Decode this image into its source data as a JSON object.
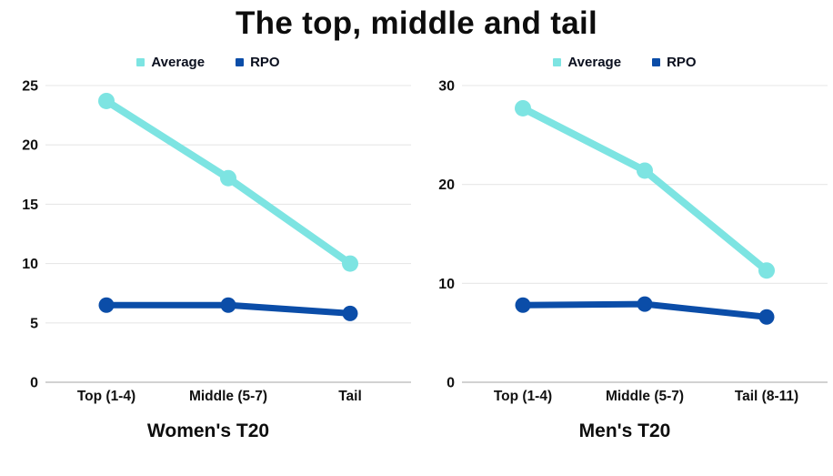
{
  "page_title": "The top, middle and tail",
  "legend": {
    "items": [
      {
        "label": "Average",
        "color": "#7DE4E2"
      },
      {
        "label": "RPO",
        "color": "#0B4DA8"
      }
    ]
  },
  "colors": {
    "average_series": "#7DE4E2",
    "rpo_series": "#0B4DA8",
    "gridline": "#E7E7E7",
    "axis_line": "#C4C4C4",
    "text": "#111111"
  },
  "chart_data": [
    {
      "type": "line",
      "title": "Women's T20",
      "categories": [
        "Top (1-4)",
        "Middle (5-7)",
        "Tail"
      ],
      "xlabel": "",
      "ylabel": "",
      "ylim": [
        0,
        25
      ],
      "yticks": [
        0,
        5,
        10,
        15,
        20,
        25
      ],
      "grid": true,
      "legend_position": "top-center",
      "series": [
        {
          "name": "Average",
          "color": "#7DE4E2",
          "values": [
            23.7,
            17.2,
            10.0
          ]
        },
        {
          "name": "RPO",
          "color": "#0B4DA8",
          "values": [
            6.5,
            6.5,
            5.8
          ]
        }
      ]
    },
    {
      "type": "line",
      "title": "Men's T20",
      "categories": [
        "Top (1-4)",
        "Middle (5-7)",
        "Tail (8-11)"
      ],
      "xlabel": "",
      "ylabel": "",
      "ylim": [
        0,
        30
      ],
      "yticks": [
        0,
        10,
        20,
        30
      ],
      "grid": true,
      "legend_position": "top-center",
      "series": [
        {
          "name": "Average",
          "color": "#7DE4E2",
          "values": [
            27.7,
            21.4,
            11.3
          ]
        },
        {
          "name": "RPO",
          "color": "#0B4DA8",
          "values": [
            7.8,
            7.9,
            6.6
          ]
        }
      ]
    }
  ]
}
